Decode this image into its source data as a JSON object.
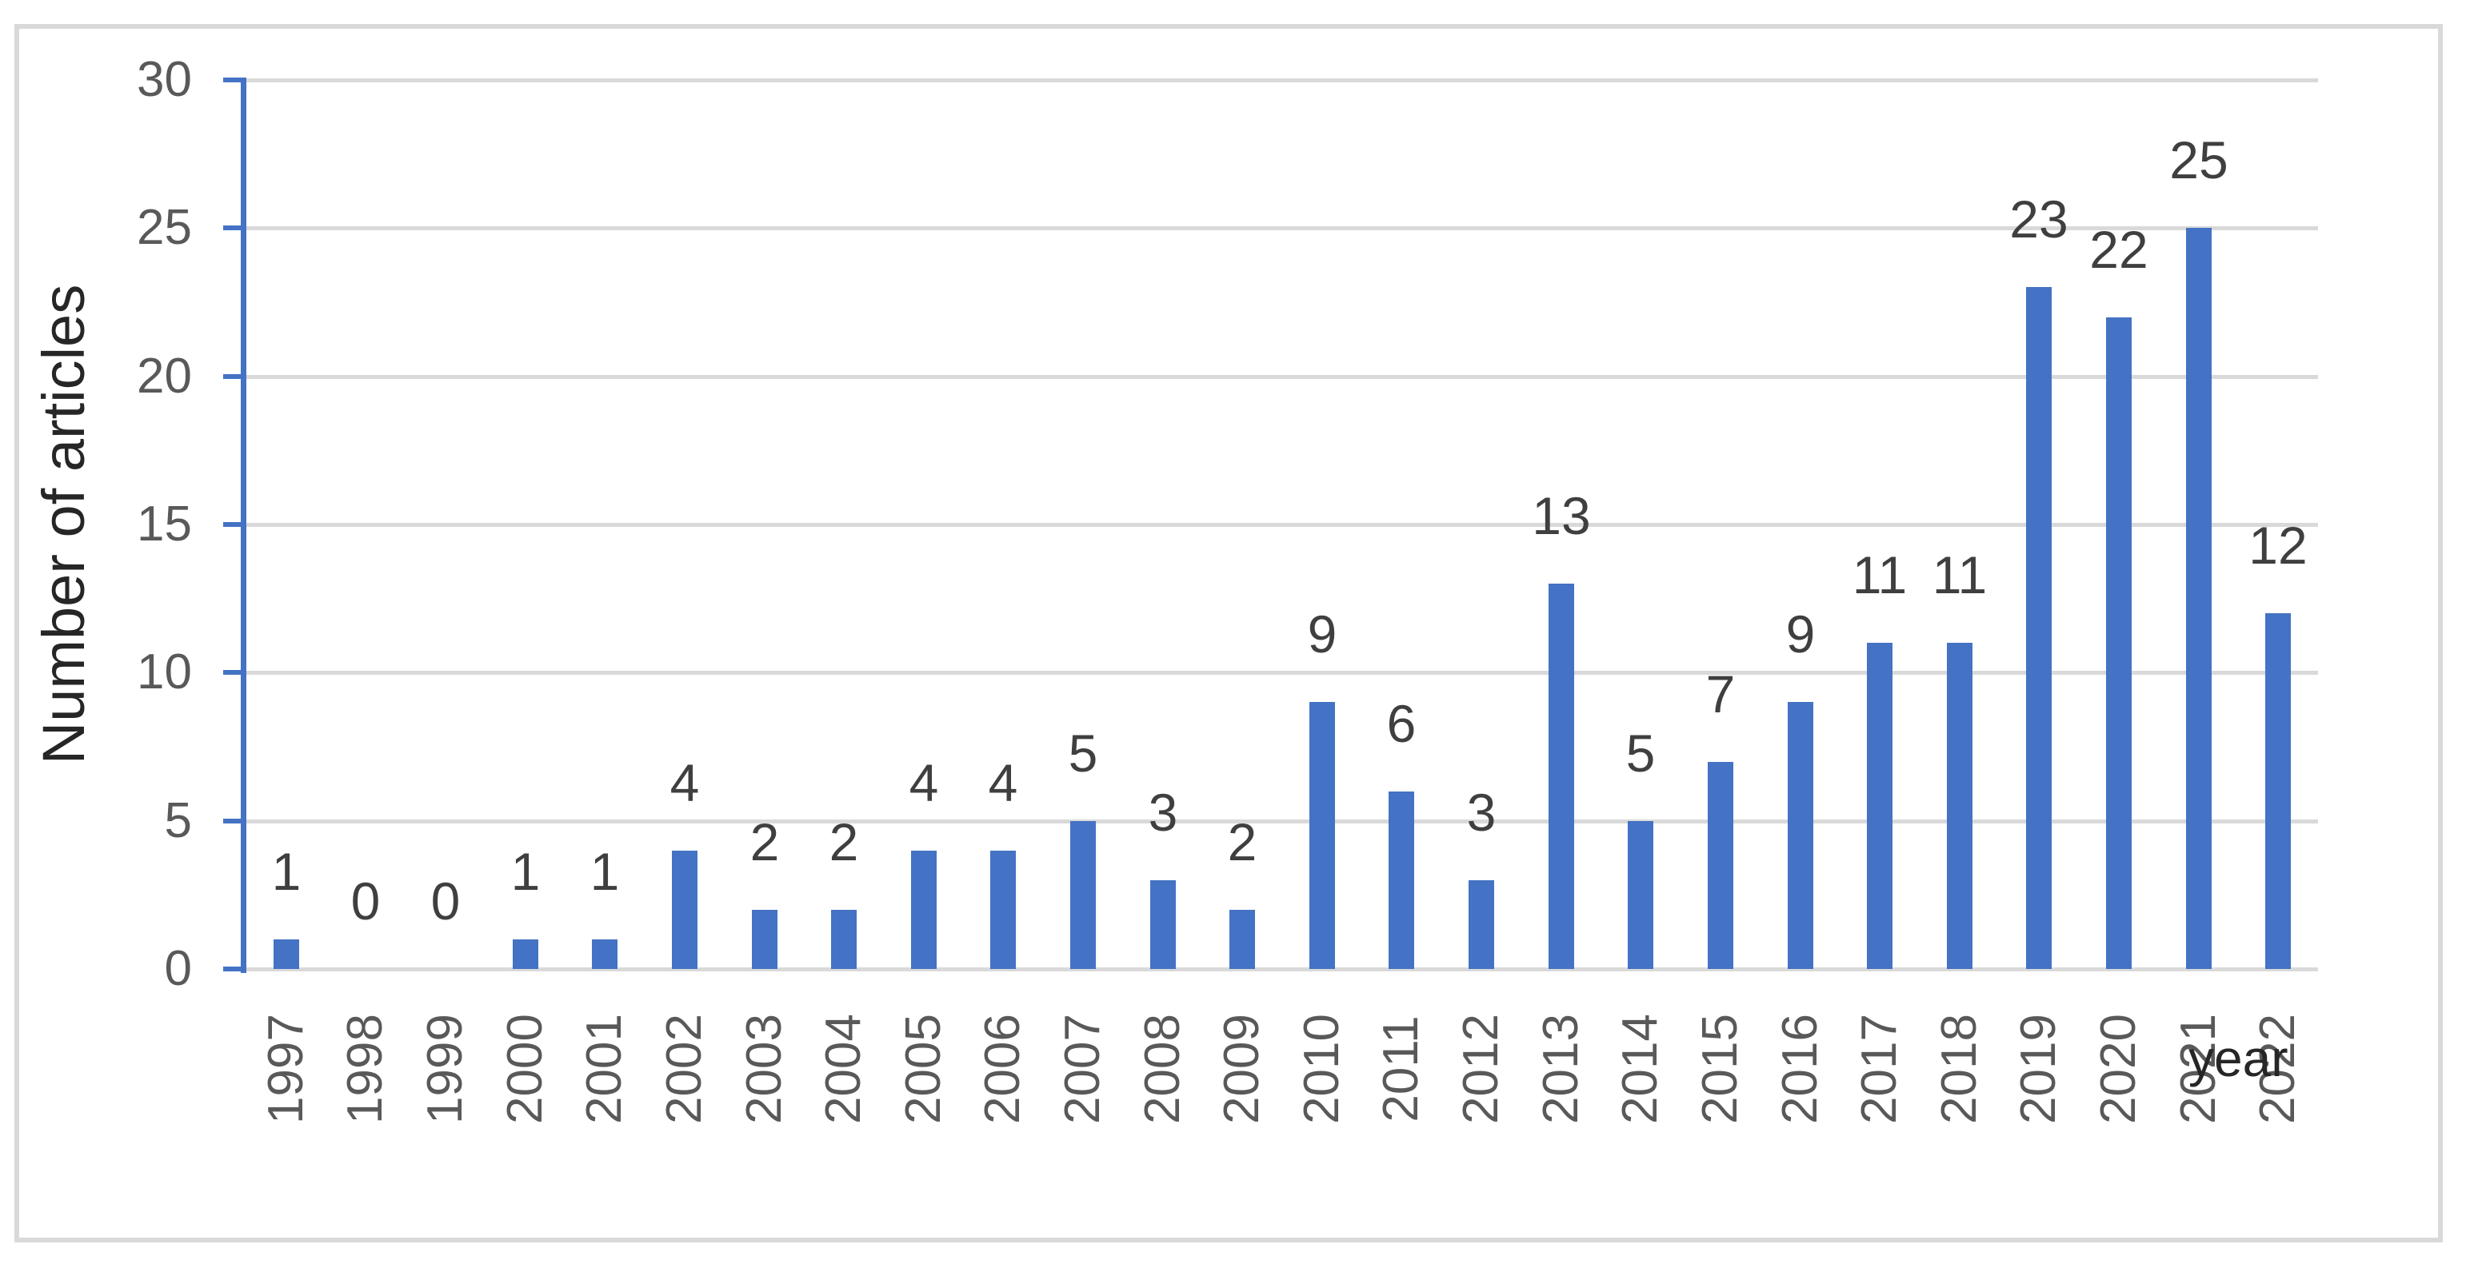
{
  "chart_data": {
    "type": "bar",
    "title": "",
    "xlabel": "year",
    "ylabel": "Number of articles",
    "categories": [
      "1997",
      "1998",
      "1999",
      "2000",
      "2001",
      "2002",
      "2003",
      "2004",
      "2005",
      "2006",
      "2007",
      "2008",
      "2009",
      "2010",
      "2011",
      "2012",
      "2013",
      "2014",
      "2015",
      "2016",
      "2017",
      "2018",
      "2019",
      "2020",
      "2021",
      "2022"
    ],
    "values": [
      1,
      0,
      0,
      1,
      1,
      4,
      2,
      2,
      4,
      4,
      5,
      3,
      2,
      9,
      6,
      3,
      13,
      5,
      7,
      9,
      11,
      11,
      23,
      22,
      25,
      12
    ],
    "data_labels": [
      1,
      0,
      0,
      1,
      1,
      4,
      2,
      2,
      4,
      4,
      5,
      3,
      2,
      9,
      6,
      3,
      13,
      5,
      7,
      9,
      11,
      11,
      23,
      22,
      25,
      12
    ],
    "yticks": [
      0,
      5,
      10,
      15,
      20,
      25,
      30
    ],
    "ylim": [
      0,
      30
    ],
    "grid": true,
    "legend": false,
    "data_label_position": "outside-end",
    "x_tick_rotation": -90,
    "colors": {
      "bar": "#4472C4",
      "axis_line": "#4472C4",
      "gridline": "#D9D9D9",
      "chart_border": "#D9D9D9",
      "tick_label": "#595959",
      "x_tick_label": "#595959",
      "data_label": "#3F3F3F",
      "axis_title": "#262626",
      "background": "#FFFFFF"
    }
  }
}
